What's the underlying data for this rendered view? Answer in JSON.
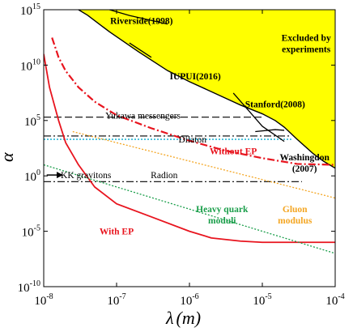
{
  "chart_data": {
    "type": "line",
    "title": "",
    "xlabel": {
      "symbol": "λ",
      "unit": "(m)"
    },
    "ylabel": "α",
    "xscale": "log",
    "yscale": "log",
    "xlim": [
      1e-08,
      0.0001
    ],
    "ylim": [
      1e-10,
      1000000000000000.0
    ],
    "grid": false,
    "x_ticks": [
      {
        "value": 1e-08,
        "base": "10",
        "exp": "-8"
      },
      {
        "value": 1e-07,
        "base": "10",
        "exp": "-7"
      },
      {
        "value": 1e-06,
        "base": "10",
        "exp": "-6"
      },
      {
        "value": 1e-05,
        "base": "10",
        "exp": "-5"
      },
      {
        "value": 0.0001,
        "base": "10",
        "exp": "-4"
      }
    ],
    "y_ticks": [
      {
        "value": 1e-10,
        "base": "10",
        "exp": "-10"
      },
      {
        "value": 1e-05,
        "base": "10",
        "exp": "-5"
      },
      {
        "value": 1.0,
        "base": "10",
        "exp": "0"
      },
      {
        "value": 100000.0,
        "base": "10",
        "exp": "5"
      },
      {
        "value": 10000000000.0,
        "base": "10",
        "exp": "10"
      },
      {
        "value": 1000000000000000.0,
        "base": "10",
        "exp": "15"
      }
    ],
    "colors": {
      "excluded_fill": "#ffff00",
      "with_ep": "#e8141e",
      "without_ep": "#e8141e",
      "dilaton": "#2ab7d6",
      "heavy_quark": "#1a9e4a",
      "gluon": "#f4a623",
      "hidden_ep_marker": "#000000"
    },
    "excluded_region": {
      "label": "Excluded by\nexperiments",
      "boundary": [
        [
          3e-08,
          1000000000000000.0
        ],
        [
          4e-08,
          320000000000000.0
        ],
        [
          8e-08,
          10000000000000.0
        ],
        [
          2e-07,
          160000000000.0
        ],
        [
          5e-07,
          3200000000.0
        ],
        [
          1e-06,
          320000000.0
        ],
        [
          2e-06,
          40000000.0
        ],
        [
          5e-06,
          2500000.0
        ],
        [
          1e-05,
          400000.0
        ],
        [
          1.5e-05,
          100000.0
        ],
        [
          2e-05,
          25000.0
        ],
        [
          3e-05,
          2000.0
        ],
        [
          5e-05,
          100
        ],
        [
          7e-05,
          20
        ],
        [
          0.0001,
          5
        ]
      ]
    },
    "series": [
      {
        "name": "With EP",
        "style": "solid",
        "points": [
          [
            1e-08,
            100000000000.0
          ],
          [
            1.2e-08,
            100000000.0
          ],
          [
            1.6e-08,
            100000.0
          ],
          [
            2e-08,
            1000.0
          ],
          [
            3e-08,
            10
          ],
          [
            5e-08,
            0.1
          ],
          [
            1e-07,
            0.003
          ],
          [
            3e-07,
            0.0002
          ],
          [
            1e-06,
            1e-05
          ],
          [
            2e-06,
            2.5e-06
          ],
          [
            5e-06,
            1.3e-06
          ],
          [
            1e-05,
            1e-06
          ],
          [
            0.0001,
            1e-06
          ]
        ]
      },
      {
        "name": "Without EP",
        "style": "dashdot",
        "points": [
          [
            1.3e-08,
            3000000000000.0
          ],
          [
            1.6e-08,
            50000000000.0
          ],
          [
            2e-08,
            3000000000.0
          ],
          [
            3e-08,
            100000000.0
          ],
          [
            5e-08,
            5000000.0
          ],
          [
            1e-07,
            300000.0
          ],
          [
            3e-07,
            20000.0
          ],
          [
            1e-06,
            1500.0
          ],
          [
            3e-06,
            200
          ],
          [
            1e-05,
            40
          ],
          [
            3e-05,
            12
          ],
          [
            0.0001,
            10
          ]
        ]
      },
      {
        "name": "Heavy quark moduli",
        "style": "dotted",
        "points": [
          [
            1e-08,
            10
          ],
          [
            0.0001,
            1e-07
          ]
        ]
      },
      {
        "name": "Gluon modulus",
        "style": "dotted",
        "points": [
          [
            2.5e-08,
            10000.0
          ],
          [
            0.0001,
            0.01
          ]
        ]
      }
    ],
    "reference_lines": [
      {
        "name": "Yukawa messengers",
        "style": "dashed",
        "y": 200000.0,
        "x": [
          1e-08,
          1e-05
        ]
      },
      {
        "name": "",
        "style": "dashdot",
        "y": 4000.0,
        "x": [
          1e-08,
          2.5e-05
        ]
      },
      {
        "name": "Dilaton",
        "style": "dotted",
        "y": 2000.0,
        "x": [
          1e-08,
          2.5e-05
        ]
      },
      {
        "name": "Radion",
        "style": "dashdot",
        "y": 0.3,
        "x": [
          1e-08,
          3.5e-05
        ]
      }
    ],
    "experiment_curves": [
      {
        "name": "Riverside(1998)",
        "points": [
          [
            8e-08,
            1000000000000000.0
          ],
          [
            1.5e-07,
            300000000000000.0
          ],
          [
            5e-07,
            50000000000000.0
          ]
        ]
      },
      {
        "name": "IUPUI(2016)",
        "points": [
          [
            1.5e-07,
            1000000000000.0
          ],
          [
            3e-07,
            50000000000.0
          ]
        ]
      },
      {
        "name": "Stanford(2008)",
        "points": [
          [
            4e-06,
            30000000.0
          ],
          [
            1e-05,
            30000.0
          ],
          [
            2e-05,
            1300.0
          ]
        ]
      },
      {
        "name": "Washingdon\n(2007)",
        "points": [
          [
            8e-06,
            10000.0
          ],
          [
            1.5e-05,
            15000.0
          ],
          [
            2e-05,
            13000.0
          ]
        ]
      }
    ],
    "annotations": [
      {
        "text": "Riverside(1998)",
        "x": 2.2e-07,
        "y": 100000000000000.0,
        "color": "#000000",
        "bold": true
      },
      {
        "text": "IUPUI(2016)",
        "x": 1.2e-06,
        "y": 1000000000.0,
        "color": "#000000",
        "bold": true
      },
      {
        "text": "Stanford(2008)",
        "x": 1.5e-05,
        "y": 3000000.0,
        "color": "#000000",
        "bold": true
      },
      {
        "text": "Washingdon\n(2007)",
        "x": 3.8e-05,
        "y": 50,
        "color": "#000000",
        "bold": true
      },
      {
        "text": "Excluded by\nexperiments",
        "x": 4e-05,
        "y": 3000000000000.0,
        "color": "#000000",
        "bold": true
      },
      {
        "text": "Yukawa messengers",
        "x": 2.3e-07,
        "y": 300000.0,
        "color": "#000000",
        "bold": false
      },
      {
        "text": "Dilaton",
        "x": 1.1e-06,
        "y": 2000.0,
        "color": "#000000",
        "bold": false
      },
      {
        "text": "Without EP",
        "x": 4e-06,
        "y": 170.0,
        "color": "#e8141e",
        "bold": true
      },
      {
        "text": "KK gravitons",
        "x": 3.8e-08,
        "y": 1.2,
        "color": "#000000",
        "bold": false
      },
      {
        "text": "Radion",
        "x": 4.5e-07,
        "y": 1.2,
        "color": "#000000",
        "bold": false
      },
      {
        "text": "Heavy quark\nmoduli",
        "x": 2.8e-06,
        "y": 0.001,
        "color": "#1a9e4a",
        "bold": true
      },
      {
        "text": "Gluon\nmodulus",
        "x": 2.8e-05,
        "y": 0.001,
        "color": "#f4a623",
        "bold": true
      },
      {
        "text": "With EP",
        "x": 1e-07,
        "y": 1e-05,
        "color": "#e8141e",
        "bold": true
      }
    ],
    "arrow": {
      "label": "KK gravitons",
      "x_start": 1.1e-08,
      "x_end": 1.8e-08,
      "y": 1.2
    }
  }
}
